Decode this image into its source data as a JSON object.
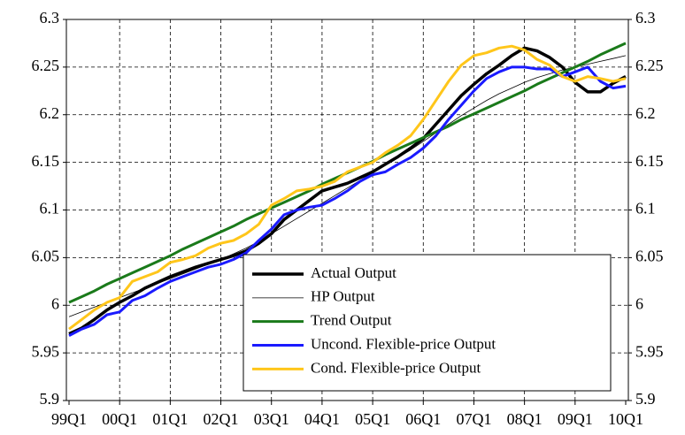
{
  "chart_data": {
    "type": "line",
    "categories": [
      "99Q1",
      null,
      null,
      null,
      "00Q1",
      null,
      null,
      null,
      "01Q1",
      null,
      null,
      null,
      "02Q1",
      null,
      null,
      null,
      "03Q1",
      null,
      null,
      null,
      "04Q1",
      null,
      null,
      null,
      "05Q1",
      null,
      null,
      null,
      "06Q1",
      null,
      null,
      null,
      "07Q1",
      null,
      null,
      null,
      "08Q1",
      null,
      null,
      null,
      "09Q1",
      null,
      null,
      null,
      "10Q1"
    ],
    "series": [
      {
        "name": "Actual Output",
        "color": "#000000",
        "width": 3.5,
        "values": [
          5.97,
          5.976,
          5.985,
          5.995,
          6.003,
          6.01,
          6.018,
          6.024,
          6.03,
          6.035,
          6.04,
          6.044,
          6.048,
          6.052,
          6.057,
          6.065,
          6.075,
          6.09,
          6.1,
          6.11,
          6.12,
          6.124,
          6.128,
          6.134,
          6.14,
          6.148,
          6.156,
          6.165,
          6.175,
          6.19,
          6.205,
          6.22,
          6.232,
          6.243,
          6.252,
          6.262,
          6.27,
          6.267,
          6.26,
          6.25,
          6.234,
          6.224,
          6.224,
          6.233,
          6.24
        ]
      },
      {
        "name": "HP Output",
        "color": "#000000",
        "width": 0.8,
        "values": [
          5.988,
          5.993,
          5.998,
          6.003,
          6.008,
          6.013,
          6.018,
          6.023,
          6.028,
          6.033,
          6.038,
          6.043,
          6.048,
          6.054,
          6.06,
          6.067,
          6.075,
          6.083,
          6.091,
          6.099,
          6.107,
          6.115,
          6.123,
          6.131,
          6.139,
          6.147,
          6.155,
          6.163,
          6.172,
          6.181,
          6.19,
          6.199,
          6.207,
          6.215,
          6.222,
          6.228,
          6.234,
          6.239,
          6.243,
          6.247,
          6.25,
          6.253,
          6.256,
          6.259,
          6.262
        ]
      },
      {
        "name": "Trend Output",
        "color": "#1a7a1a",
        "width": 3,
        "values": [
          6.003,
          6.009,
          6.015,
          6.022,
          6.028,
          6.034,
          6.04,
          6.046,
          6.052,
          6.059,
          6.065,
          6.071,
          6.077,
          6.083,
          6.09,
          6.096,
          6.102,
          6.108,
          6.114,
          6.12,
          6.127,
          6.133,
          6.139,
          6.145,
          6.151,
          6.158,
          6.164,
          6.17,
          6.176,
          6.182,
          6.188,
          6.195,
          6.201,
          6.207,
          6.213,
          6.219,
          6.225,
          6.232,
          6.238,
          6.244,
          6.25,
          6.256,
          6.263,
          6.269,
          6.275
        ]
      },
      {
        "name": "Uncond. Flexible-price Output",
        "color": "#1a1aff",
        "width": 3,
        "values": [
          5.968,
          5.975,
          5.98,
          5.99,
          5.993,
          6.005,
          6.01,
          6.018,
          6.025,
          6.03,
          6.035,
          6.04,
          6.043,
          6.048,
          6.055,
          6.068,
          6.08,
          6.095,
          6.1,
          6.103,
          6.105,
          6.112,
          6.12,
          6.13,
          6.137,
          6.14,
          6.148,
          6.155,
          6.165,
          6.178,
          6.195,
          6.21,
          6.225,
          6.238,
          6.245,
          6.25,
          6.25,
          6.248,
          6.248,
          6.24,
          6.245,
          6.25,
          6.235,
          6.228,
          6.23
        ]
      },
      {
        "name": "Cond. Flexible-price Output",
        "color": "#ffc61a",
        "width": 3,
        "values": [
          5.975,
          5.985,
          5.995,
          6.003,
          6.008,
          6.025,
          6.03,
          6.035,
          6.045,
          6.048,
          6.052,
          6.06,
          6.065,
          6.068,
          6.075,
          6.085,
          6.105,
          6.112,
          6.12,
          6.122,
          6.125,
          6.13,
          6.14,
          6.145,
          6.15,
          6.16,
          6.168,
          6.178,
          6.195,
          6.215,
          6.235,
          6.252,
          6.262,
          6.265,
          6.27,
          6.272,
          6.268,
          6.258,
          6.252,
          6.24,
          6.235,
          6.24,
          6.238,
          6.235,
          6.238
        ]
      }
    ],
    "ylim": [
      5.9,
      6.3
    ],
    "yticks": [
      5.9,
      5.95,
      6,
      6.05,
      6.1,
      6.15,
      6.2,
      6.25,
      6.3
    ],
    "y2lim": [
      5.9,
      6.3
    ],
    "y2ticks": [
      5.9,
      5.95,
      6,
      6.05,
      6.1,
      6.15,
      6.2,
      6.25,
      6.3
    ],
    "grid": true
  }
}
